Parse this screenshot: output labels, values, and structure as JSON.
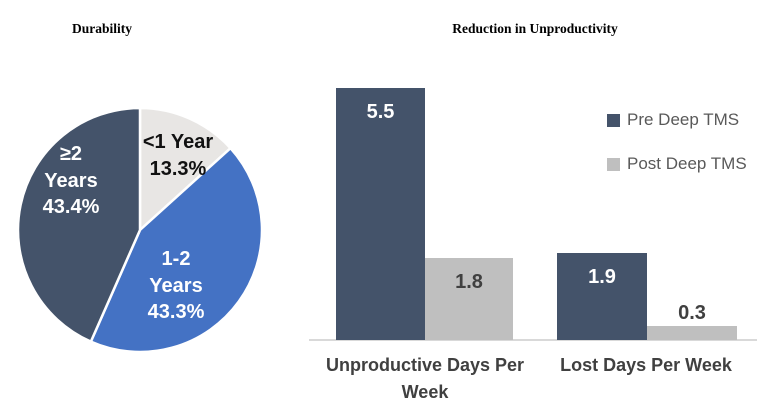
{
  "chart_data": [
    {
      "type": "pie",
      "title": "Durability",
      "slices": [
        {
          "label": "<1 Year",
          "value": 13.3,
          "display_lines": [
            "<1 Year",
            "13.3%"
          ],
          "color": "#e8e6e4",
          "label_color": "#111111"
        },
        {
          "label": "1-2 Years",
          "value": 43.3,
          "display_lines": [
            "1-2",
            "Years",
            "43.3%"
          ],
          "color": "#4472c4",
          "label_color": "#ffffff"
        },
        {
          "label": "≥2 Years",
          "value": 43.4,
          "display_lines": [
            "≥2",
            "Years",
            "43.4%"
          ],
          "color": "#44536a",
          "label_color": "#ffffff"
        }
      ],
      "start_angle_deg": 0,
      "direction": "clockwise",
      "slice_border_color": "#ffffff",
      "legend": "none"
    },
    {
      "type": "bar",
      "title": "Reduction in Unproductivity",
      "categories": [
        "Unproductive Days Per Week",
        "Lost Days Per Week"
      ],
      "series": [
        {
          "name": "Pre Deep TMS",
          "color": "#44536a",
          "label_color": "#ffffff",
          "values": [
            5.5,
            1.9
          ]
        },
        {
          "name": "Post Deep TMS",
          "color": "#bfbfbf",
          "label_color": "#404040",
          "values": [
            1.8,
            0.3
          ]
        }
      ],
      "ylim": [
        0,
        5.5
      ],
      "value_labels": true,
      "gridlines": false,
      "legend_position": "right",
      "axis_line_color": "#d9d9d9",
      "text_colors": {
        "category": "#404040",
        "legend": "#595959"
      }
    }
  ]
}
